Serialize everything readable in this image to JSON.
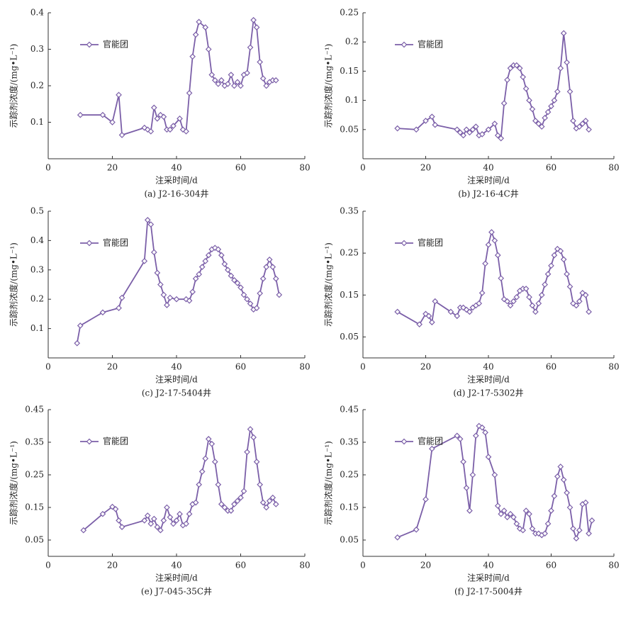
{
  "chart_data": [
    {
      "type": "line",
      "caption": "(a) J2-16-304井",
      "xlabel": "注采时间/d",
      "ylabel": "示踪剂浓度/(mg•L⁻¹)",
      "legend": "upper left",
      "xlim": [
        0,
        80
      ],
      "xticks": [
        0,
        20,
        40,
        60,
        80
      ],
      "ylim": [
        0,
        0.4
      ],
      "yticks": [
        0.1,
        0.2,
        0.3,
        0.4
      ],
      "x": [
        10,
        17,
        20,
        22,
        23,
        30,
        31,
        32,
        33,
        34,
        35,
        36,
        37,
        38,
        39,
        41,
        42,
        43,
        44,
        45,
        46,
        47,
        49,
        50,
        51,
        52,
        53,
        54,
        55,
        56,
        57,
        58,
        59,
        60,
        61,
        62,
        63,
        64,
        65,
        66,
        67,
        68,
        69,
        70,
        71
      ],
      "series": [
        {
          "name": "官能团",
          "color": "#7b5fa8",
          "values": [
            0.12,
            0.12,
            0.1,
            0.175,
            0.065,
            0.085,
            0.08,
            0.075,
            0.14,
            0.11,
            0.12,
            0.115,
            0.08,
            0.08,
            0.09,
            0.11,
            0.08,
            0.075,
            0.18,
            0.28,
            0.34,
            0.375,
            0.36,
            0.3,
            0.23,
            0.215,
            0.205,
            0.215,
            0.2,
            0.205,
            0.23,
            0.2,
            0.21,
            0.2,
            0.23,
            0.235,
            0.305,
            0.38,
            0.36,
            0.265,
            0.22,
            0.2,
            0.21,
            0.215,
            0.215
          ]
        }
      ]
    },
    {
      "type": "line",
      "caption": "(b) J2-16-4C井",
      "xlabel": "注采时间/d",
      "ylabel": "示踪剂浓度/(mg•L⁻¹)",
      "legend": "upper left",
      "xlim": [
        0,
        80
      ],
      "xticks": [
        0,
        20,
        40,
        60,
        80
      ],
      "ylim": [
        0,
        0.25
      ],
      "yticks": [
        0.05,
        0.1,
        0.15,
        0.2,
        0.25
      ],
      "x": [
        11,
        17,
        20,
        22,
        23,
        30,
        31,
        32,
        33,
        34,
        35,
        36,
        37,
        38,
        40,
        42,
        43,
        44,
        45,
        46,
        47,
        48,
        49,
        50,
        51,
        52,
        53,
        54,
        55,
        56,
        57,
        58,
        59,
        60,
        61,
        62,
        63,
        64,
        65,
        66,
        67,
        68,
        69,
        70,
        71,
        72
      ],
      "series": [
        {
          "name": "官能团",
          "color": "#7b5fa8",
          "values": [
            0.052,
            0.05,
            0.065,
            0.072,
            0.058,
            0.05,
            0.045,
            0.04,
            0.05,
            0.045,
            0.05,
            0.055,
            0.04,
            0.042,
            0.05,
            0.06,
            0.04,
            0.035,
            0.095,
            0.135,
            0.155,
            0.16,
            0.16,
            0.155,
            0.14,
            0.12,
            0.1,
            0.085,
            0.065,
            0.06,
            0.055,
            0.07,
            0.08,
            0.09,
            0.1,
            0.115,
            0.155,
            0.215,
            0.165,
            0.115,
            0.065,
            0.052,
            0.055,
            0.06,
            0.065,
            0.05
          ]
        }
      ]
    },
    {
      "type": "line",
      "caption": "(c) J2-17-5404井",
      "xlabel": "注采时间/d",
      "ylabel": "示踪剂浓度/(mg•L⁻¹)",
      "legend": "upper left",
      "xlim": [
        0,
        80
      ],
      "xticks": [
        0,
        20,
        40,
        60,
        80
      ],
      "ylim": [
        0,
        0.5
      ],
      "yticks": [
        0.1,
        0.2,
        0.3,
        0.4,
        0.5
      ],
      "x": [
        9,
        10,
        17,
        22,
        23,
        30,
        31,
        32,
        33,
        34,
        35,
        36,
        37,
        38,
        40,
        43,
        44,
        45,
        46,
        47,
        48,
        49,
        50,
        51,
        52,
        53,
        54,
        55,
        56,
        57,
        58,
        59,
        60,
        61,
        62,
        63,
        64,
        65,
        66,
        67,
        68,
        69,
        70,
        71,
        72
      ],
      "series": [
        {
          "name": "官能团",
          "color": "#7b5fa8",
          "values": [
            0.05,
            0.11,
            0.155,
            0.17,
            0.205,
            0.33,
            0.47,
            0.455,
            0.36,
            0.29,
            0.25,
            0.215,
            0.18,
            0.205,
            0.2,
            0.2,
            0.195,
            0.225,
            0.27,
            0.285,
            0.31,
            0.33,
            0.35,
            0.37,
            0.375,
            0.37,
            0.35,
            0.32,
            0.3,
            0.28,
            0.265,
            0.255,
            0.24,
            0.215,
            0.2,
            0.185,
            0.165,
            0.17,
            0.22,
            0.27,
            0.31,
            0.335,
            0.31,
            0.27,
            0.215
          ]
        }
      ]
    },
    {
      "type": "line",
      "caption": "(d) J2-17-5302井",
      "xlabel": "注采时间/d",
      "ylabel": "示踪剂浓度/(mg•L⁻¹)",
      "legend": "upper left",
      "xlim": [
        0,
        80
      ],
      "xticks": [
        0,
        20,
        40,
        60,
        80
      ],
      "ylim": [
        0,
        0.35
      ],
      "yticks": [
        0.05,
        0.15,
        0.25,
        0.35
      ],
      "x": [
        11,
        18,
        20,
        21,
        22,
        23,
        28,
        30,
        31,
        32,
        33,
        34,
        35,
        36,
        37,
        38,
        39,
        40,
        41,
        42,
        43,
        44,
        45,
        46,
        47,
        48,
        49,
        50,
        51,
        52,
        53,
        54,
        55,
        56,
        57,
        58,
        59,
        60,
        61,
        62,
        63,
        64,
        65,
        66,
        67,
        68,
        69,
        70,
        71,
        72
      ],
      "series": [
        {
          "name": "官能团",
          "color": "#7b5fa8",
          "values": [
            0.11,
            0.08,
            0.105,
            0.1,
            0.085,
            0.135,
            0.11,
            0.1,
            0.12,
            0.12,
            0.115,
            0.11,
            0.12,
            0.125,
            0.13,
            0.155,
            0.225,
            0.27,
            0.3,
            0.28,
            0.245,
            0.19,
            0.14,
            0.135,
            0.125,
            0.135,
            0.145,
            0.16,
            0.165,
            0.165,
            0.145,
            0.125,
            0.11,
            0.13,
            0.15,
            0.175,
            0.2,
            0.22,
            0.245,
            0.26,
            0.255,
            0.235,
            0.2,
            0.17,
            0.13,
            0.125,
            0.135,
            0.155,
            0.15,
            0.11
          ]
        }
      ]
    },
    {
      "type": "line",
      "caption": "(e) J7-045-35C井",
      "xlabel": "注采时间/d",
      "ylabel": "示踪剂浓度/(mg•L⁻¹)",
      "legend": "upper left",
      "xlim": [
        0,
        80
      ],
      "xticks": [
        0,
        20,
        40,
        60,
        80
      ],
      "ylim": [
        0,
        0.45
      ],
      "yticks": [
        0.05,
        0.15,
        0.25,
        0.35,
        0.45
      ],
      "x": [
        11,
        17,
        20,
        21,
        22,
        23,
        30,
        31,
        32,
        33,
        34,
        35,
        36,
        37,
        38,
        39,
        40,
        41,
        42,
        43,
        44,
        45,
        46,
        47,
        48,
        49,
        50,
        51,
        52,
        53,
        54,
        55,
        56,
        57,
        58,
        59,
        60,
        61,
        62,
        63,
        64,
        65,
        66,
        67,
        68,
        69,
        70,
        71
      ],
      "series": [
        {
          "name": "官能团",
          "color": "#7b5fa8",
          "values": [
            0.08,
            0.13,
            0.152,
            0.145,
            0.11,
            0.09,
            0.11,
            0.125,
            0.1,
            0.115,
            0.09,
            0.08,
            0.11,
            0.15,
            0.12,
            0.1,
            0.11,
            0.13,
            0.095,
            0.1,
            0.13,
            0.16,
            0.165,
            0.22,
            0.26,
            0.3,
            0.36,
            0.345,
            0.29,
            0.22,
            0.16,
            0.15,
            0.14,
            0.14,
            0.16,
            0.17,
            0.18,
            0.2,
            0.32,
            0.39,
            0.365,
            0.29,
            0.22,
            0.165,
            0.15,
            0.17,
            0.18,
            0.16
          ]
        }
      ]
    },
    {
      "type": "line",
      "caption": "(f) J2-17-5004井",
      "xlabel": "注采时间/d",
      "ylabel": "示踪剂浓度/(mg•L⁻¹)",
      "legend": "upper left",
      "xlim": [
        0,
        80
      ],
      "xticks": [
        0,
        20,
        40,
        60,
        80
      ],
      "ylim": [
        0,
        0.45
      ],
      "yticks": [
        0.05,
        0.15,
        0.25,
        0.35,
        0.45
      ],
      "x": [
        11,
        17,
        20,
        22,
        30,
        31,
        32,
        33,
        34,
        35,
        36,
        37,
        38,
        39,
        40,
        42,
        43,
        44,
        45,
        46,
        47,
        48,
        49,
        50,
        51,
        52,
        53,
        54,
        55,
        56,
        57,
        58,
        59,
        60,
        61,
        62,
        63,
        64,
        65,
        66,
        67,
        68,
        69,
        70,
        71,
        72,
        73
      ],
      "series": [
        {
          "name": "官能团",
          "color": "#7b5fa8",
          "values": [
            0.058,
            0.082,
            0.175,
            0.33,
            0.37,
            0.36,
            0.29,
            0.21,
            0.14,
            0.25,
            0.37,
            0.4,
            0.395,
            0.38,
            0.305,
            0.25,
            0.155,
            0.13,
            0.14,
            0.12,
            0.13,
            0.12,
            0.1,
            0.085,
            0.08,
            0.14,
            0.13,
            0.085,
            0.07,
            0.07,
            0.065,
            0.07,
            0.1,
            0.14,
            0.185,
            0.245,
            0.275,
            0.235,
            0.195,
            0.15,
            0.085,
            0.055,
            0.08,
            0.16,
            0.165,
            0.07,
            0.11
          ]
        }
      ]
    }
  ]
}
